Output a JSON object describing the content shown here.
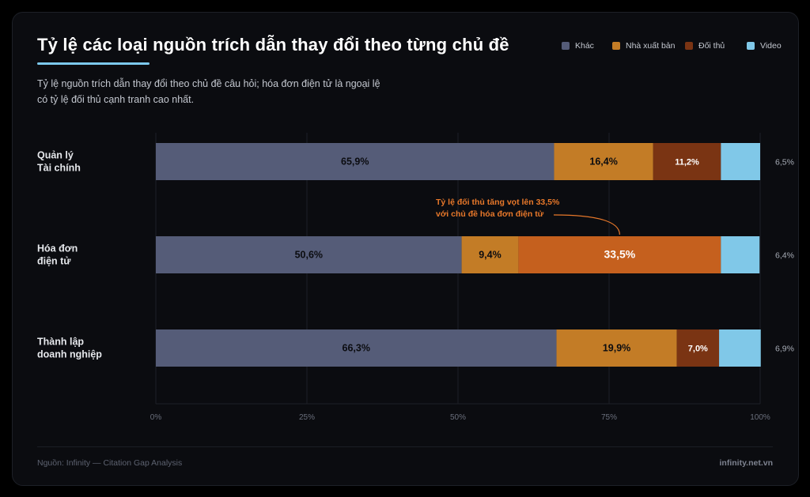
{
  "title": "Tỷ lệ các loại nguồn trích dẫn thay đổi theo từng chủ đề",
  "subtitle": "Tỷ lệ nguồn trích dẫn thay đổi theo chủ đề câu hỏi; hóa đơn điện tử là ngoại lệ có tỷ lệ đối thủ cạnh tranh cao nhất.",
  "source": "Nguồn: Infinity — Citation Gap Analysis",
  "site": "infinity.net.vn",
  "colors": {
    "background": "#0b0c10",
    "khac": "#555c78",
    "nha_xuat_ban": "#c37c26",
    "doi_thu": "#7a3413",
    "doi_thu_highlight": "#c5601e",
    "video": "#80c8e8",
    "annotation": "#e8782a",
    "accent": "#7cc8ec"
  },
  "chart_data": {
    "type": "bar",
    "orientation": "horizontal",
    "stacked": true,
    "categories": [
      [
        "Quản lý",
        "Tài chính"
      ],
      [
        "Hóa đơn",
        "điện tử"
      ],
      [
        "Thành lập",
        "doanh nghiệp"
      ]
    ],
    "series": [
      {
        "name": "Khác",
        "color": "#555c78",
        "values": [
          65.9,
          50.6,
          66.3
        ],
        "labels": [
          "65,9%",
          "50,6%",
          "66,3%"
        ]
      },
      {
        "name": "Nhà xuất bản",
        "color": "#c37c26",
        "values": [
          16.4,
          9.4,
          19.9
        ],
        "labels": [
          "16,4%",
          "9,4%",
          "19,9%"
        ]
      },
      {
        "name": "Đối thủ",
        "color": "#7a3413",
        "highlight_color": "#c5601e",
        "highlight_index": 1,
        "values": [
          11.2,
          33.5,
          7.0
        ],
        "labels": [
          "11,2%",
          "33,5%",
          "7,0%"
        ]
      },
      {
        "name": "Video",
        "color": "#80c8e8",
        "values": [
          6.5,
          6.4,
          6.9
        ],
        "labels": [
          "6,5%",
          "6,4%",
          "6,9%"
        ]
      }
    ],
    "xlim": [
      0,
      100
    ],
    "xticks": [
      0,
      25,
      50,
      75,
      100
    ],
    "xtick_labels": [
      "0%",
      "25%",
      "50%",
      "75%",
      "100%"
    ],
    "grid": true,
    "legend_position": "top-right",
    "annotation": {
      "category_index": 1,
      "lines": [
        "Tỷ lệ đối thủ tăng vọt lên 33,5%",
        "với chủ đề hóa đơn điện tử"
      ]
    }
  }
}
